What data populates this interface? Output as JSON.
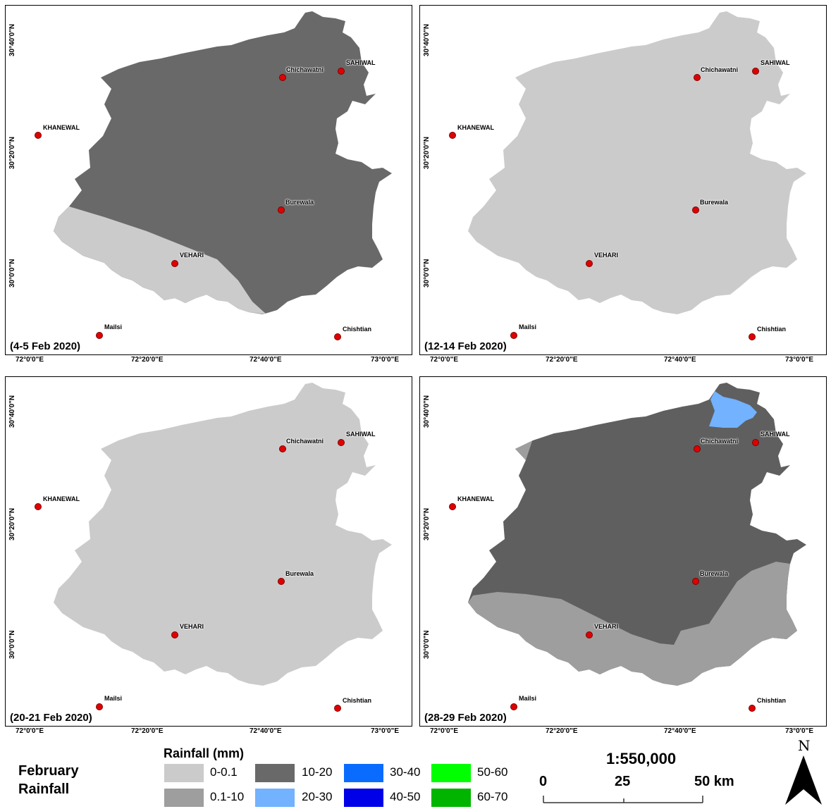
{
  "panels": [
    {
      "period": "(4-5 Feb 2020)",
      "base_color": "#696969",
      "overlay_color": "#cbcbcb",
      "overlay_class": "0-0.1"
    },
    {
      "period": "(12-14 Feb 2020)",
      "base_color": "#cbcbcb"
    },
    {
      "period": "(20-21 Feb 2020)",
      "base_color": "#cbcbcb"
    },
    {
      "period": "(28-29 Feb 2020)",
      "base_color": "#5f5f5f",
      "overlay_color": "#9e9e9e",
      "overlay_class": "0.1-10",
      "extra_color": "#72b2ff",
      "extra_class": "20-30"
    }
  ],
  "cities": {
    "chichawatni": "Chichawatni",
    "sahiwal": "SAHIWAL",
    "khanewal": "KHANEWAL",
    "burewala": "Burewala",
    "vehari": "VEHARI",
    "mailsi": "Mailsi",
    "chishtian": "Chishtian"
  },
  "axes": {
    "lat_top": "30°40'0\"N",
    "lat_mid": "30°20'0\"N",
    "lat_low": "30°0'0\"N",
    "lon_0": "72°0'0\"E",
    "lon_1": "72°20'0\"E",
    "lon_2": "72°40'0\"E",
    "lon_3": "73°0'0\"E"
  },
  "legend": {
    "title_line1": "February",
    "title_line2": "Rainfall",
    "heading": "Rainfall (mm)",
    "classes": [
      {
        "label": "0-0.1",
        "color": "#cbcbcb"
      },
      {
        "label": "0.1-10",
        "color": "#9e9e9e"
      },
      {
        "label": "10-20",
        "color": "#696969"
      },
      {
        "label": "20-30",
        "color": "#72b2ff"
      },
      {
        "label": "30-40",
        "color": "#0a6cff"
      },
      {
        "label": "40-50",
        "color": "#0000e8"
      },
      {
        "label": "50-60",
        "color": "#00ff00"
      },
      {
        "label": "60-70",
        "color": "#00b400"
      }
    ]
  },
  "scale": {
    "ratio": "1:550,000",
    "tick_0": "0",
    "tick_1": "25",
    "tick_2": "50 km"
  },
  "north_label": "N"
}
